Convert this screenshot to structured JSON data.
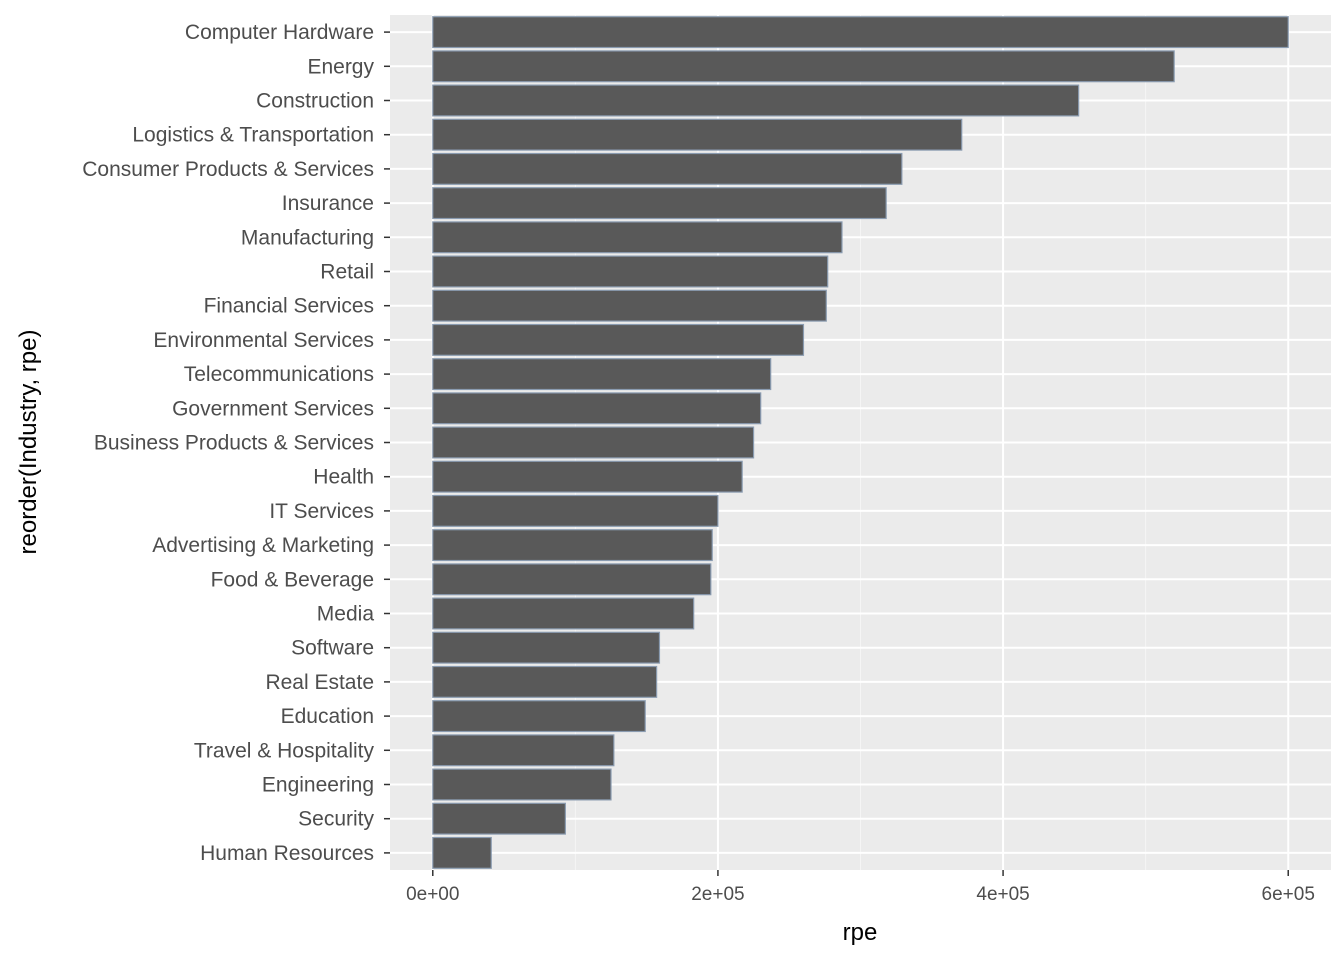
{
  "chart_data": {
    "type": "bar",
    "orientation": "horizontal",
    "xlabel": "rpe",
    "ylabel": "reorder(Industry, rpe)",
    "xlim": [
      -30000,
      630000
    ],
    "x_ticks": [
      0,
      200000,
      400000,
      600000
    ],
    "x_tick_labels": [
      "0e+00",
      "2e+05",
      "4e+05",
      "6e+05"
    ],
    "grid": true,
    "legend": "none",
    "colors": {
      "panel_background": "#ebebeb",
      "grid_major": "#ffffff",
      "grid_minor": "#f5f5f5",
      "bar_fill": "#595959",
      "bar_outline": "#8a9bb0"
    },
    "categories": [
      "Computer Hardware",
      "Energy",
      "Construction",
      "Logistics & Transportation",
      "Consumer Products & Services",
      "Insurance",
      "Manufacturing",
      "Retail",
      "Financial Services",
      "Environmental Services",
      "Telecommunications",
      "Government Services",
      "Business Products & Services",
      "Health",
      "IT Services",
      "Advertising & Marketing",
      "Food & Beverage",
      "Media",
      "Software",
      "Real Estate",
      "Education",
      "Travel & Hospitality",
      "Engineering",
      "Security",
      "Human Resources"
    ],
    "values": [
      600000,
      520000,
      453000,
      371000,
      329000,
      318000,
      287000,
      277000,
      276000,
      260000,
      237000,
      230000,
      225000,
      217000,
      200000,
      196000,
      195000,
      183000,
      159000,
      157000,
      149000,
      127000,
      125000,
      93000,
      41000
    ]
  }
}
